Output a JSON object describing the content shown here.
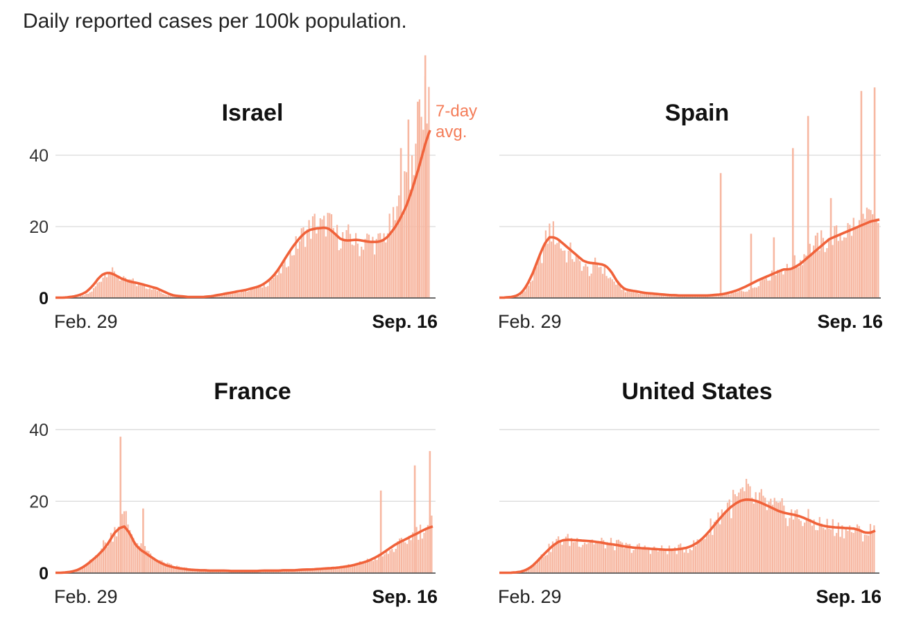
{
  "page_title": "Daily reported cases per 100k population.",
  "colors": {
    "bar": "#f7b7a1",
    "avg_line": "#f0623a",
    "annotation": "#f47c58",
    "grid": "#d9d9d9",
    "axis": "#555555"
  },
  "chart_data": [
    {
      "type": "bar",
      "title": "Israel",
      "x_start_label": "Feb. 29",
      "x_end_label": "Sep. 16",
      "ylim": [
        0,
        68
      ],
      "yticks": [
        {
          "value": 0,
          "label": "0"
        },
        {
          "value": 20,
          "label": "20"
        },
        {
          "value": 40,
          "label": "40"
        }
      ],
      "grid": true,
      "annotation": [
        "7-day",
        "avg."
      ],
      "series": [
        {
          "kind": "daily",
          "values_sampled": [
            0.1,
            0.1,
            0.1,
            0.1,
            0.2,
            0.3,
            0.4,
            0.6,
            1,
            1.5,
            2.5,
            4,
            5.5,
            7,
            8,
            7,
            6.5,
            5.5,
            5,
            4.5,
            5,
            4,
            3.5,
            4,
            3,
            3,
            2.5,
            2,
            1.5,
            1,
            0.8,
            0.6,
            0.5,
            0.4,
            0.4,
            0.3,
            0.3,
            0.3,
            0.3,
            0.3,
            0.4,
            0.5,
            0.6,
            0.8,
            1,
            1.2,
            1.3,
            1.5,
            1.6,
            1.8,
            2,
            2.2,
            2.5,
            2.8,
            3,
            3.5,
            4,
            5,
            6,
            7,
            8,
            10,
            12,
            13.5,
            15,
            17,
            18,
            19,
            20,
            21,
            20,
            19.5,
            22,
            20,
            18,
            17,
            17,
            16,
            18,
            16,
            15,
            14,
            17,
            16,
            16,
            15,
            16,
            17,
            19,
            20,
            22,
            25,
            28,
            32,
            36,
            40,
            44,
            48,
            55,
            60
          ]
        },
        {
          "kind": "avg",
          "values_sampled": [
            0.1,
            0.1,
            0.1,
            0.2,
            0.3,
            0.5,
            0.8,
            1.2,
            1.8,
            2.8,
            4,
            5.5,
            6.5,
            7,
            7,
            6.6,
            6,
            5.4,
            5,
            4.6,
            4.4,
            4.2,
            3.9,
            3.6,
            3.3,
            3,
            2.7,
            2.2,
            1.7,
            1.2,
            0.8,
            0.6,
            0.5,
            0.4,
            0.3,
            0.3,
            0.3,
            0.3,
            0.3,
            0.4,
            0.5,
            0.7,
            0.9,
            1.1,
            1.3,
            1.5,
            1.7,
            1.9,
            2.1,
            2.3,
            2.6,
            2.9,
            3.2,
            3.7,
            4.4,
            5.3,
            6.4,
            7.8,
            9.5,
            11.3,
            13,
            14.6,
            16,
            17.3,
            18.3,
            19,
            19.3,
            19.5,
            19.6,
            19.7,
            19.4,
            18.6,
            17.6,
            16.6,
            16.2,
            16.1,
            16.2,
            16.3,
            16.2,
            16,
            15.8,
            15.7,
            15.7,
            15.8,
            16.2,
            17,
            18.3,
            19.8,
            21.5,
            23.6,
            26,
            29,
            32.5,
            36,
            40,
            44,
            47
          ]
        }
      ]
    },
    {
      "type": "bar",
      "title": "Spain",
      "x_start_label": "Feb. 29",
      "x_end_label": "Sep. 16",
      "ylim": [
        0,
        68
      ],
      "yticks": [
        {
          "value": 0,
          "label": "0"
        },
        {
          "value": 20,
          "label": "20"
        },
        {
          "value": 40,
          "label": "40"
        }
      ],
      "grid": true,
      "series": [
        {
          "kind": "daily",
          "values_sampled": [
            0.1,
            0.1,
            0.1,
            0.2,
            0.4,
            1,
            2,
            4,
            6,
            9,
            12,
            16,
            19,
            18,
            16,
            14,
            12,
            13,
            11,
            10,
            9,
            8,
            7,
            10,
            9,
            8,
            6,
            5,
            4,
            3,
            2,
            2,
            1.5,
            1.5,
            1.5,
            1.2,
            1.2,
            1,
            1,
            0.8,
            0.6,
            0.6,
            0.5,
            0.5,
            0.5,
            0.5,
            0.6,
            0.6,
            0.6,
            0.6,
            0.7,
            0.7,
            0.8,
            1,
            1,
            1.2,
            1.3,
            1.5,
            2,
            2,
            2.5,
            3,
            4,
            5,
            6,
            6,
            7,
            8,
            8,
            8,
            9,
            10,
            10,
            12,
            13,
            14,
            15,
            16,
            15,
            17,
            18,
            17,
            18,
            19,
            19,
            20,
            19,
            21,
            21,
            22,
            21,
            22
          ]
        },
        {
          "kind": "avg",
          "values_sampled": [
            0.1,
            0.1,
            0.2,
            0.3,
            0.6,
            1.2,
            2.5,
            4.5,
            7,
            10,
            13,
            15.5,
            17,
            17,
            16.5,
            15.5,
            14.5,
            13.5,
            12.5,
            11.5,
            10.5,
            10,
            9.8,
            9.7,
            9.5,
            9.3,
            8.5,
            7,
            5,
            3.5,
            2.5,
            2.2,
            2,
            1.8,
            1.6,
            1.4,
            1.3,
            1.2,
            1.1,
            1,
            0.9,
            0.8,
            0.8,
            0.7,
            0.7,
            0.7,
            0.7,
            0.7,
            0.7,
            0.7,
            0.7,
            0.8,
            0.9,
            1,
            1.2,
            1.5,
            1.8,
            2.2,
            2.7,
            3.2,
            3.8,
            4.4,
            5,
            5.5,
            6,
            6.5,
            7,
            7.5,
            8,
            8,
            8.2,
            8.8,
            9.5,
            10.5,
            11.5,
            12.5,
            13.5,
            14.5,
            15.5,
            16.5,
            17,
            17.5,
            18,
            18.5,
            19,
            19.5,
            20,
            20.5,
            21,
            21.5,
            21.7,
            22
          ]
        }
      ],
      "spikes": [
        [
          0.58,
          35
        ],
        [
          0.77,
          42
        ],
        [
          0.81,
          51
        ],
        [
          0.87,
          28
        ],
        [
          0.95,
          58
        ],
        [
          0.985,
          59
        ],
        [
          0.72,
          17
        ],
        [
          0.66,
          18
        ]
      ]
    },
    {
      "type": "bar",
      "title": "France",
      "x_start_label": "Feb. 29",
      "x_end_label": "Sep. 16",
      "ylim": [
        0,
        42
      ],
      "yticks": [
        {
          "value": 0,
          "label": "0"
        },
        {
          "value": 20,
          "label": "20"
        },
        {
          "value": 40,
          "label": "40"
        }
      ],
      "grid": true,
      "series": [
        {
          "kind": "daily",
          "values_sampled": [
            0.1,
            0.1,
            0.2,
            0.4,
            0.8,
            1.5,
            2.5,
            4,
            6,
            8,
            9,
            12,
            14,
            16,
            12,
            9,
            7,
            6,
            5,
            4,
            3,
            2.5,
            2,
            1.8,
            1.5,
            1.3,
            1,
            0.9,
            0.8,
            0.8,
            0.7,
            0.7,
            0.6,
            0.6,
            0.6,
            0.6,
            0.6,
            0.6,
            0.6,
            0.7,
            0.7,
            0.7,
            0.7,
            0.8,
            0.8,
            0.8,
            0.9,
            1,
            1,
            1.1,
            1.2,
            1.3,
            1.4,
            1.5,
            1.7,
            2,
            2.3,
            2.6,
            3,
            3.5,
            4,
            4.5,
            5,
            6,
            7,
            8,
            9,
            10,
            11,
            12,
            13,
            14
          ]
        },
        {
          "kind": "avg",
          "values_sampled": [
            0.1,
            0.1,
            0.2,
            0.4,
            0.8,
            1.5,
            2.5,
            3.7,
            5,
            6.5,
            8.5,
            11,
            12.5,
            13,
            11,
            8,
            6.5,
            5.5,
            4.5,
            3.5,
            2.7,
            2.1,
            1.7,
            1.4,
            1.2,
            1,
            0.9,
            0.8,
            0.8,
            0.7,
            0.7,
            0.7,
            0.7,
            0.6,
            0.6,
            0.6,
            0.6,
            0.6,
            0.6,
            0.7,
            0.7,
            0.7,
            0.7,
            0.8,
            0.8,
            0.8,
            0.9,
            1,
            1,
            1.1,
            1.2,
            1.3,
            1.4,
            1.5,
            1.7,
            1.9,
            2.2,
            2.6,
            3,
            3.5,
            4.2,
            5,
            6,
            7,
            8,
            8.8,
            9.5,
            10.3,
            11,
            11.8,
            12.5,
            13
          ]
        }
      ],
      "spikes": [
        [
          0.17,
          38
        ],
        [
          0.23,
          18
        ],
        [
          0.86,
          23
        ],
        [
          0.95,
          30
        ],
        [
          0.99,
          34
        ]
      ]
    },
    {
      "type": "bar",
      "title": "United States",
      "x_start_label": "Feb. 29",
      "x_end_label": "Sep. 16",
      "ylim": [
        0,
        42
      ],
      "yticks": [
        {
          "value": 0,
          "label": "0"
        },
        {
          "value": 20,
          "label": "20"
        },
        {
          "value": 40,
          "label": "40"
        }
      ],
      "grid": true,
      "series": [
        {
          "kind": "daily",
          "values_sampled": [
            0.1,
            0.1,
            0.1,
            0.2,
            0.5,
            1,
            2,
            3.5,
            5,
            6.5,
            8,
            9,
            9.5,
            9,
            9.2,
            9,
            8.8,
            9,
            8.6,
            8.5,
            8.2,
            8,
            7.8,
            7.5,
            7.2,
            7,
            7,
            6.8,
            6.8,
            6.6,
            6.5,
            6.5,
            6.5,
            6.6,
            6.8,
            7,
            7.5,
            8.5,
            10,
            12,
            14,
            16,
            18,
            19,
            20,
            21,
            22,
            21,
            20,
            19.5,
            19,
            18,
            17.5,
            17,
            16.5,
            16,
            15.5,
            15,
            14.5,
            14,
            13.5,
            13,
            13,
            12.5,
            12.5,
            12,
            12,
            11.5,
            11,
            11.5,
            12
          ]
        },
        {
          "kind": "avg",
          "values_sampled": [
            0.1,
            0.1,
            0.1,
            0.2,
            0.4,
            0.9,
            1.8,
            3.2,
            4.8,
            6.3,
            7.7,
            8.7,
            9.2,
            9.3,
            9.2,
            9.1,
            9,
            8.9,
            8.7,
            8.5,
            8.2,
            8,
            7.8,
            7.5,
            7.3,
            7.1,
            7,
            6.9,
            6.8,
            6.7,
            6.6,
            6.5,
            6.5,
            6.6,
            6.8,
            7.1,
            7.7,
            8.6,
            9.9,
            11.5,
            13.3,
            15.1,
            16.8,
            18.3,
            19.4,
            20.2,
            20.5,
            20.4,
            20,
            19.4,
            18.7,
            18,
            17.3,
            16.8,
            16.5,
            16.2,
            15.8,
            15.2,
            14.5,
            13.8,
            13.3,
            13,
            12.8,
            12.7,
            12.6,
            12.5,
            12.4,
            12,
            11.3,
            11.2,
            11.8
          ]
        }
      ]
    }
  ]
}
